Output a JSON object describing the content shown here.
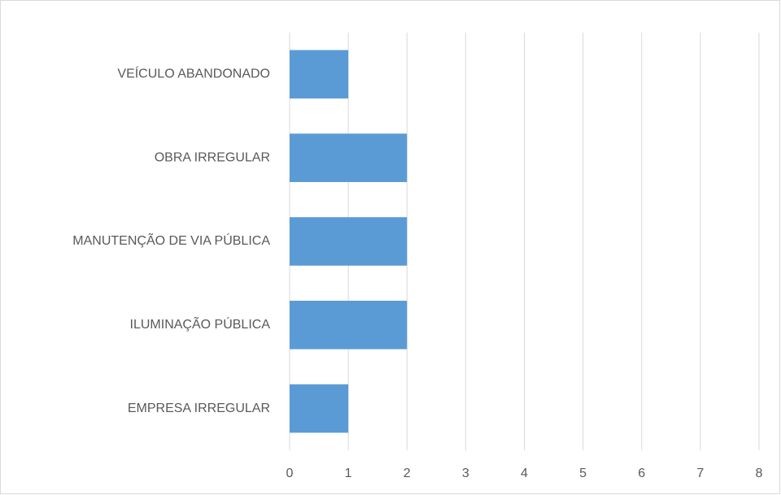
{
  "chart_data": {
    "type": "bar",
    "orientation": "horizontal",
    "categories": [
      "VEÍCULO ABANDONADO",
      "OBRA IRREGULAR",
      "MANUTENÇÃO DE VIA PÚBLICA",
      "ILUMINAÇÃO PÚBLICA",
      "EMPRESA IRREGULAR"
    ],
    "values": [
      1,
      2,
      2,
      2,
      1
    ],
    "color": "#5b9bd5",
    "xlim": [
      0,
      8
    ],
    "xticks": [
      0,
      1,
      2,
      3,
      4,
      5,
      6,
      7,
      8
    ],
    "grid": true
  }
}
